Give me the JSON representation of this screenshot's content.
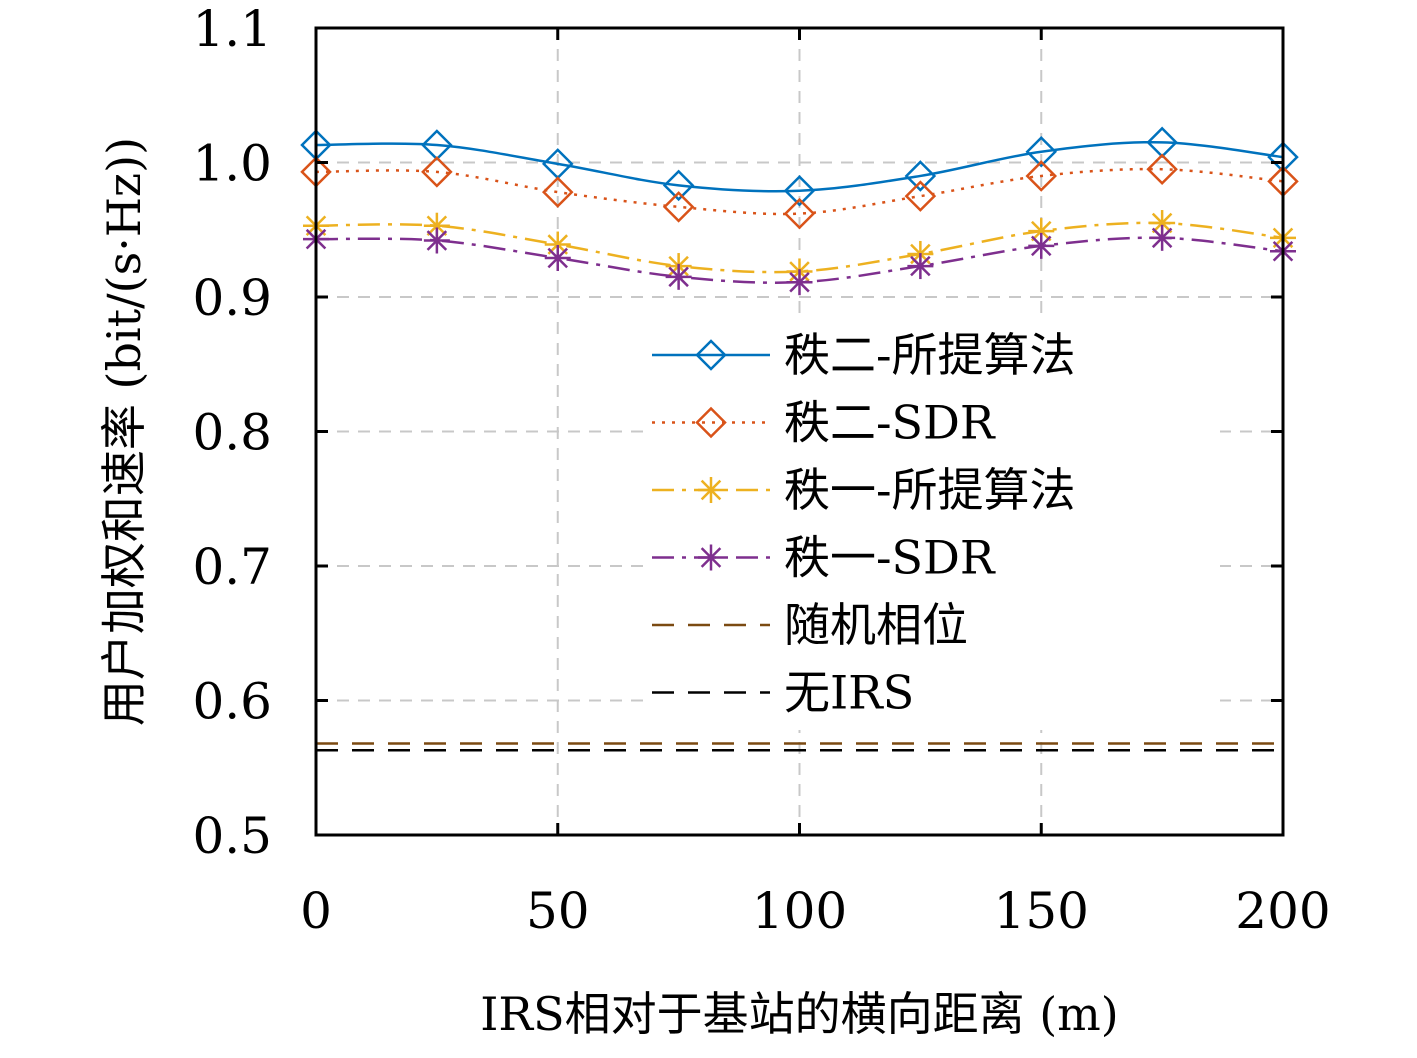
{
  "chart_data": {
    "type": "line",
    "xlabel": "IRS相对于基站的横向距离 (m)",
    "ylabel": "用户加权和速率 (bit/(s·Hz))",
    "xlim": [
      0,
      200
    ],
    "ylim": [
      0.5,
      1.1
    ],
    "xticks": [
      0,
      50,
      100,
      150,
      200
    ],
    "yticks": [
      0.5,
      0.6,
      0.7,
      0.8,
      0.9,
      1.0,
      1.1
    ],
    "xtick_labels": [
      "0",
      "50",
      "100",
      "150",
      "200"
    ],
    "ytick_labels": [
      "0.5",
      "0.6",
      "0.7",
      "0.8",
      "0.9",
      "1.0",
      "1.1"
    ],
    "grid": true,
    "legend_position": "center-right",
    "series": [
      {
        "name": "秩二-所提算法",
        "color": "#0072BD",
        "line_style": "solid",
        "marker": "diamond",
        "x": [
          0,
          25,
          50,
          75,
          100,
          125,
          150,
          175,
          200
        ],
        "values": [
          1.013,
          1.013,
          0.999,
          0.983,
          0.979,
          0.99,
          1.008,
          1.015,
          1.004
        ]
      },
      {
        "name": "秩二-SDR",
        "color": "#D95319",
        "line_style": "dotted",
        "marker": "diamond",
        "x": [
          0,
          25,
          50,
          75,
          100,
          125,
          150,
          175,
          200
        ],
        "values": [
          0.993,
          0.993,
          0.978,
          0.967,
          0.962,
          0.975,
          0.99,
          0.995,
          0.986
        ]
      },
      {
        "name": "秩一-所提算法",
        "color": "#EDB120",
        "line_style": "dashdot",
        "marker": "asterisk",
        "x": [
          0,
          25,
          50,
          75,
          100,
          125,
          150,
          175,
          200
        ],
        "values": [
          0.953,
          0.953,
          0.939,
          0.923,
          0.919,
          0.932,
          0.949,
          0.955,
          0.944
        ]
      },
      {
        "name": "秩一-SDR",
        "color": "#7E2F8E",
        "line_style": "dashdot",
        "marker": "asterisk",
        "x": [
          0,
          25,
          50,
          75,
          100,
          125,
          150,
          175,
          200
        ],
        "values": [
          0.943,
          0.942,
          0.929,
          0.915,
          0.911,
          0.923,
          0.938,
          0.944,
          0.934
        ]
      },
      {
        "name": "随机相位",
        "color": "#7B4A12",
        "line_style": "dashed",
        "marker": "none",
        "x": [
          0,
          200
        ],
        "values": [
          0.568,
          0.568
        ]
      },
      {
        "name": "无IRS",
        "color": "#000000",
        "line_style": "dashed",
        "marker": "none",
        "x": [
          0,
          200
        ],
        "values": [
          0.563,
          0.563
        ]
      }
    ]
  }
}
